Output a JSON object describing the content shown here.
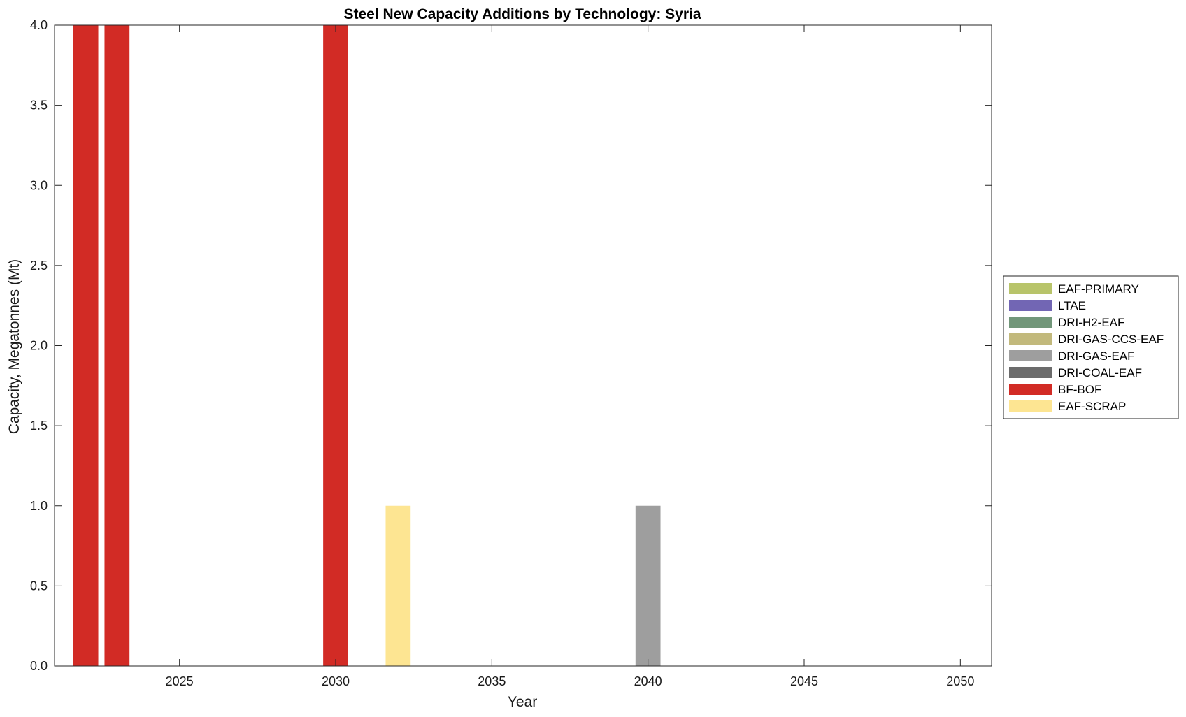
{
  "chart_data": {
    "type": "bar",
    "stacked": true,
    "title": "Steel New Capacity Additions by Technology: Syria",
    "xlabel": "Year",
    "ylabel": "Capacity, Megatonnes (Mt)",
    "xlim": [
      2021,
      2051
    ],
    "ylim": [
      0,
      4
    ],
    "xticks": [
      2025,
      2030,
      2035,
      2040,
      2045,
      2050
    ],
    "xtick_labels": [
      "2025",
      "2030",
      "2035",
      "2040",
      "2045",
      "2050"
    ],
    "yticks": [
      0,
      0.5,
      1,
      1.5,
      2,
      2.5,
      3,
      3.5,
      4
    ],
    "ytick_labels": [
      "0.0",
      "0.5",
      "1.0",
      "1.5",
      "2.0",
      "2.5",
      "3.0",
      "3.5",
      "4.0"
    ],
    "bar_width_years": 0.8,
    "legend_position": "right",
    "grid": false,
    "series": [
      {
        "name": "EAF-PRIMARY",
        "color": "#b8c46a",
        "points": []
      },
      {
        "name": "LTAE",
        "color": "#7266b4",
        "points": []
      },
      {
        "name": "DRI-H2-EAF",
        "color": "#72977a",
        "points": []
      },
      {
        "name": "DRI-GAS-CCS-EAF",
        "color": "#c2b97c",
        "points": []
      },
      {
        "name": "DRI-GAS-EAF",
        "color": "#9e9e9e",
        "points": [
          {
            "x": 2040,
            "y": 1
          }
        ]
      },
      {
        "name": "DRI-COAL-EAF",
        "color": "#6c6c6c",
        "points": []
      },
      {
        "name": "BF-BOF",
        "color": "#d22b25",
        "points": [
          {
            "x": 2022,
            "y": 4
          },
          {
            "x": 2023,
            "y": 4
          },
          {
            "x": 2030,
            "y": 4
          }
        ]
      },
      {
        "name": "EAF-SCRAP",
        "color": "#fde592",
        "points": [
          {
            "x": 2032,
            "y": 1
          }
        ]
      }
    ]
  }
}
